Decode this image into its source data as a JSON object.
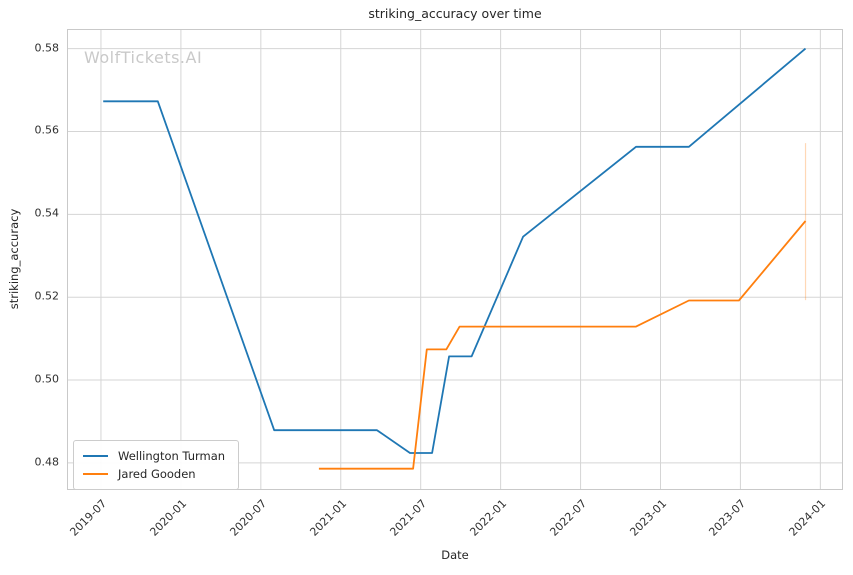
{
  "title": "striking_accuracy over time",
  "watermark": "WolfTickets.AI",
  "axes": {
    "xlabel": "Date",
    "ylabel": "striking_accuracy"
  },
  "legend": {
    "items": [
      {
        "label": "Wellington Turman",
        "color": "#1f77b4"
      },
      {
        "label": "Jared Gooden",
        "color": "#ff7f0e"
      }
    ]
  },
  "chart_data": {
    "type": "line",
    "title": "striking_accuracy over time",
    "xlabel": "Date",
    "ylabel": "striking_accuracy",
    "grid": true,
    "legend_position": "lower left",
    "background_color": "#ffffff",
    "grid_color": "#d5d5d5",
    "x_domain": [
      "2019-04-17",
      "2024-02-20"
    ],
    "y_domain": [
      0.4737,
      0.5845
    ],
    "x_ticks": [
      {
        "date": "2019-07-01",
        "label": "2019-07"
      },
      {
        "date": "2020-01-01",
        "label": "2020-01"
      },
      {
        "date": "2020-07-01",
        "label": "2020-07"
      },
      {
        "date": "2021-01-01",
        "label": "2021-01"
      },
      {
        "date": "2021-07-01",
        "label": "2021-07"
      },
      {
        "date": "2022-01-01",
        "label": "2022-01"
      },
      {
        "date": "2022-07-01",
        "label": "2022-07"
      },
      {
        "date": "2023-01-01",
        "label": "2023-01"
      },
      {
        "date": "2023-07-01",
        "label": "2023-07"
      },
      {
        "date": "2024-01-01",
        "label": "2024-01"
      }
    ],
    "y_ticks": [
      {
        "value": 0.48,
        "label": "0.48"
      },
      {
        "value": 0.5,
        "label": "0.50"
      },
      {
        "value": 0.52,
        "label": "0.52"
      },
      {
        "value": 0.54,
        "label": "0.54"
      },
      {
        "value": 0.56,
        "label": "0.56"
      },
      {
        "value": 0.58,
        "label": "0.58"
      }
    ],
    "series": [
      {
        "name": "Wellington Turman",
        "color": "#1f77b4",
        "points": [
          [
            "2019-07-06",
            0.5673
          ],
          [
            "2019-11-09",
            0.5673
          ],
          [
            "2020-08-01",
            0.4879
          ],
          [
            "2021-03-23",
            0.4879
          ],
          [
            "2021-06-07",
            0.4824
          ],
          [
            "2021-07-27",
            0.4824
          ],
          [
            "2021-09-05",
            0.5057
          ],
          [
            "2021-10-26",
            0.5057
          ],
          [
            "2022-02-22",
            0.5346
          ],
          [
            "2022-11-06",
            0.5563
          ],
          [
            "2023-03-05",
            0.5563
          ],
          [
            "2023-11-28",
            0.58
          ]
        ]
      },
      {
        "name": "Jared Gooden",
        "color": "#ff7f0e",
        "points": [
          [
            "2020-11-12",
            0.4786
          ],
          [
            "2021-06-14",
            0.4786
          ],
          [
            "2021-07-15",
            0.5074
          ],
          [
            "2021-08-29",
            0.5074
          ],
          [
            "2021-09-29",
            0.5129
          ],
          [
            "2022-11-06",
            0.5129
          ],
          [
            "2023-03-05",
            0.5192
          ],
          [
            "2023-06-28",
            0.5192
          ],
          [
            "2023-11-28",
            0.5384
          ]
        ]
      }
    ],
    "annotations": [
      {
        "type": "vline_segment",
        "date": "2023-11-28",
        "y_from": 0.5193,
        "y_to": 0.5572,
        "color": "#ff7f0e",
        "opacity": 0.3
      }
    ]
  }
}
